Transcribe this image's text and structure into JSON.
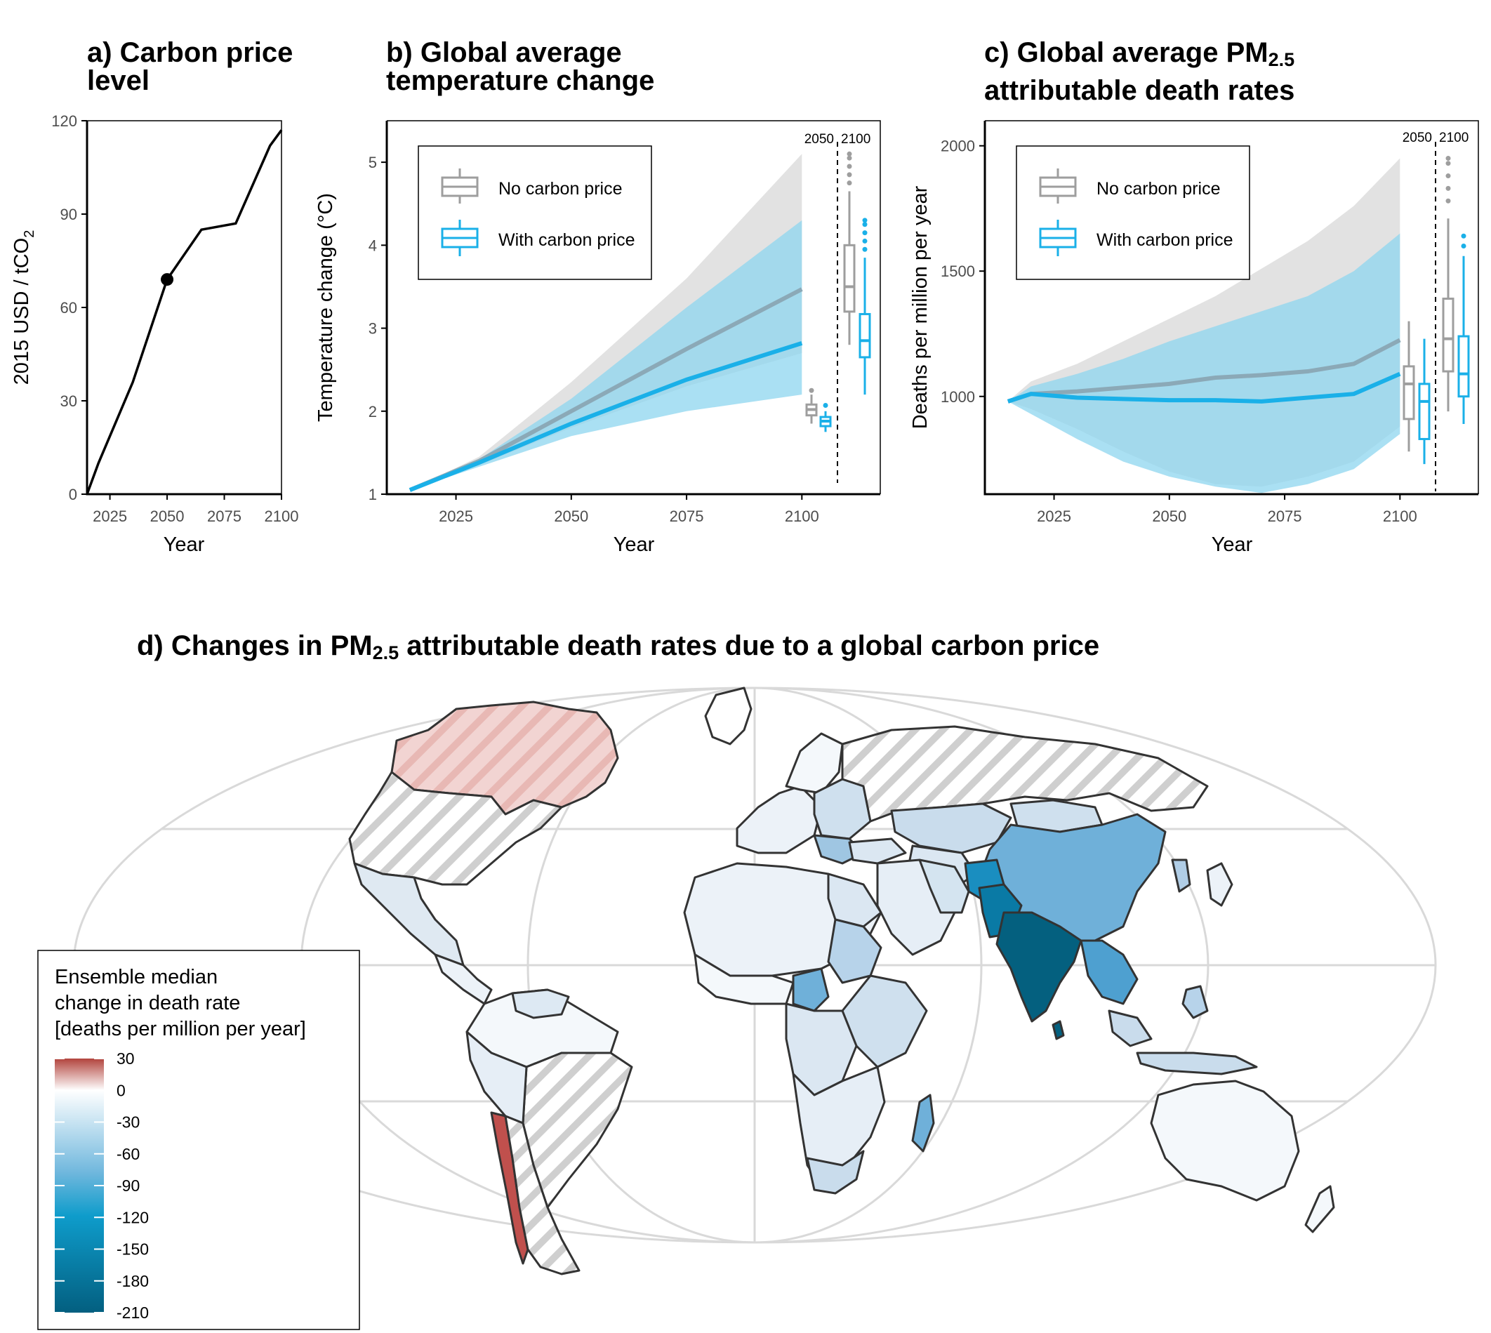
{
  "panel_a": {
    "title_line1": "a) Carbon price",
    "title_line2": "level",
    "ylabel_main": "2015 USD / tCO",
    "ylabel_sub": "2"
  },
  "panel_b": {
    "title_line1": "b) Global average",
    "title_line2": "temperature change"
  },
  "panel_c": {
    "title_line1": "c) Global average PM",
    "title_line1_sub": "2.5",
    "title_line2": "attributable death rates"
  },
  "panel_d": {
    "title_pre": "d) Changes in PM",
    "title_sub": "2.5",
    "title_post": " attributable death rates due to a global carbon price",
    "legend_title": [
      "Ensemble median",
      "change in death rate",
      "[deaths per million per year]"
    ],
    "legend_ticks": [
      "30",
      "0",
      "-30",
      "-60",
      "-90",
      "-120",
      "-150",
      "-180",
      "-210"
    ]
  },
  "colors": {
    "no_price": "#9e9e9e",
    "with_price": "#1ab0e8",
    "ribbon_gray": "#e2e2e2",
    "ribbon_blue": "#8dd6ef",
    "dark_blue": "#04607f",
    "red": "#c0504d"
  },
  "chart_data": [
    {
      "type": "line",
      "panel": "a",
      "title": "a) Carbon price level",
      "xlabel": "Year",
      "ylabel": "2015 USD / tCO2",
      "xlim": [
        2015,
        2100
      ],
      "ylim": [
        0,
        120
      ],
      "xticks": [
        2025,
        2050,
        2075,
        2100
      ],
      "yticks": [
        0,
        30,
        60,
        90,
        120
      ],
      "x": [
        2015,
        2020,
        2035,
        2050,
        2065,
        2080,
        2095,
        2100
      ],
      "y": [
        0,
        10,
        36,
        69,
        85,
        87,
        112,
        117
      ],
      "highlight_point": {
        "x": 2050,
        "y": 69
      }
    },
    {
      "type": "line",
      "panel": "b",
      "title": "b) Global average temperature change",
      "xlabel": "Year",
      "ylabel": "Temperature change (°C)",
      "xlim": [
        2010,
        2117
      ],
      "ylim": [
        1,
        5.5
      ],
      "xticks": [
        2025,
        2050,
        2075,
        2100
      ],
      "yticks": [
        1,
        2,
        3,
        4,
        5
      ],
      "x": [
        2015,
        2030,
        2050,
        2075,
        2100
      ],
      "series": [
        {
          "name": "No carbon price",
          "median": [
            1.05,
            1.4,
            2.0,
            2.75,
            3.47
          ],
          "low": [
            1.05,
            1.35,
            1.8,
            2.3,
            2.7
          ],
          "high": [
            1.05,
            1.45,
            2.35,
            3.6,
            5.1
          ]
        },
        {
          "name": "With carbon price",
          "median": [
            1.05,
            1.38,
            1.85,
            2.38,
            2.82
          ],
          "low": [
            1.05,
            1.33,
            1.7,
            2.0,
            2.2
          ],
          "high": [
            1.05,
            1.42,
            2.15,
            3.25,
            4.3
          ]
        }
      ],
      "boxplots": [
        {
          "label": "2050",
          "series": "No carbon price",
          "min": 1.85,
          "q1": 1.95,
          "median": 2.02,
          "q3": 2.08,
          "max": 2.2,
          "outliers": [
            2.25
          ]
        },
        {
          "label": "2050",
          "series": "With carbon price",
          "min": 1.75,
          "q1": 1.82,
          "median": 1.88,
          "q3": 1.93,
          "max": 2.0,
          "outliers": [
            2.07
          ]
        },
        {
          "label": "2100",
          "series": "No carbon price",
          "min": 2.8,
          "q1": 3.2,
          "median": 3.5,
          "q3": 4.0,
          "max": 4.65,
          "outliers": [
            4.75,
            4.85,
            4.95,
            5.05,
            5.1
          ]
        },
        {
          "label": "2100",
          "series": "With carbon price",
          "min": 2.2,
          "q1": 2.65,
          "median": 2.85,
          "q3": 3.17,
          "max": 3.85,
          "outliers": [
            3.95,
            4.05,
            4.15,
            4.25,
            4.3
          ]
        }
      ],
      "divider_labels": [
        "2050",
        "2100"
      ],
      "legend": [
        "No carbon price",
        "With carbon price"
      ]
    },
    {
      "type": "line",
      "panel": "c",
      "title": "c) Global average PM2.5 attributable death rates",
      "xlabel": "Year",
      "ylabel": "Deaths per million per year",
      "xlim": [
        2010,
        2117
      ],
      "ylim": [
        610,
        2100
      ],
      "xticks": [
        2025,
        2050,
        2075,
        2100
      ],
      "yticks": [
        1000,
        1500,
        2000
      ],
      "x": [
        2015,
        2020,
        2030,
        2040,
        2050,
        2060,
        2070,
        2080,
        2090,
        2100
      ],
      "series": [
        {
          "name": "No carbon price",
          "median": [
            980,
            1010,
            1020,
            1035,
            1050,
            1075,
            1085,
            1100,
            1130,
            1225
          ],
          "low": [
            980,
            950,
            870,
            780,
            700,
            650,
            640,
            680,
            740,
            880
          ],
          "high": [
            980,
            1060,
            1130,
            1220,
            1310,
            1400,
            1510,
            1620,
            1760,
            1950
          ]
        },
        {
          "name": "With carbon price",
          "median": [
            980,
            1010,
            995,
            990,
            985,
            985,
            980,
            995,
            1010,
            1090
          ],
          "low": [
            980,
            930,
            830,
            740,
            680,
            640,
            615,
            650,
            710,
            850
          ],
          "high": [
            980,
            1040,
            1090,
            1150,
            1220,
            1280,
            1340,
            1400,
            1500,
            1650
          ]
        }
      ],
      "boxplots": [
        {
          "label": "2050",
          "series": "No carbon price",
          "min": 780,
          "q1": 910,
          "median": 1050,
          "q3": 1120,
          "max": 1300
        },
        {
          "label": "2050",
          "series": "With carbon price",
          "min": 730,
          "q1": 830,
          "median": 980,
          "q3": 1050,
          "max": 1230
        },
        {
          "label": "2100",
          "series": "No carbon price",
          "min": 940,
          "q1": 1100,
          "median": 1230,
          "q3": 1390,
          "max": 1710,
          "outliers": [
            1780,
            1830,
            1880,
            1930,
            1950
          ]
        },
        {
          "label": "2100",
          "series": "With carbon price",
          "min": 890,
          "q1": 1000,
          "median": 1090,
          "q3": 1240,
          "max": 1560,
          "outliers": [
            1600,
            1640
          ]
        }
      ],
      "divider_labels": [
        "2050",
        "2100"
      ],
      "legend": [
        "No carbon price",
        "With carbon price"
      ]
    },
    {
      "type": "heatmap",
      "panel": "d",
      "title": "d) Changes in PM2.5 attributable death rates due to a global carbon price",
      "colorbar_range": [
        -210,
        30
      ],
      "colorbar_ticks": [
        30,
        0,
        -30,
        -60,
        -90,
        -120,
        -150,
        -180,
        -210
      ],
      "colorbar_label": "Ensemble median change in death rate [deaths per million per year]"
    }
  ]
}
